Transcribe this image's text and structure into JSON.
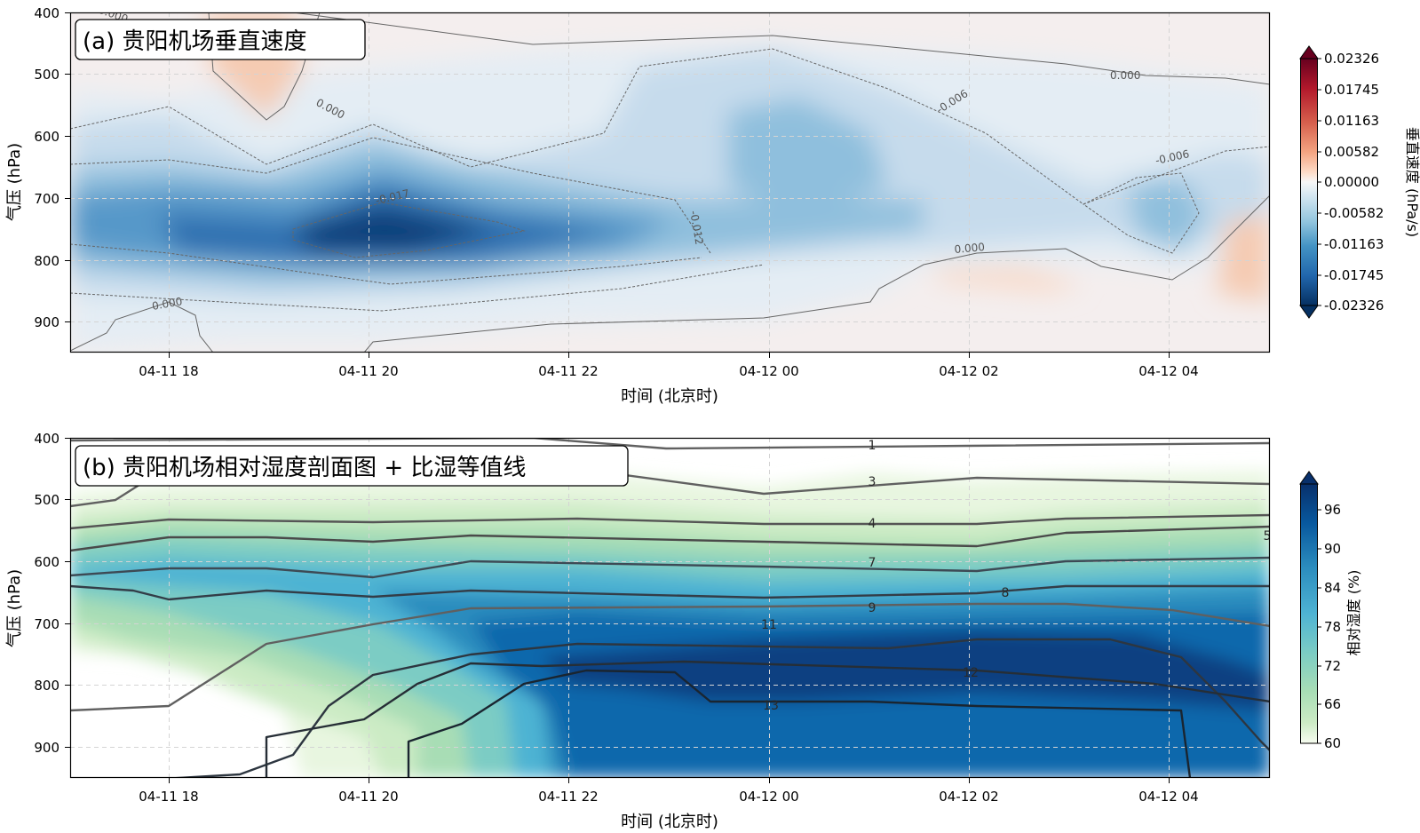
{
  "chart_data": [
    {
      "type": "heatmap",
      "title": "(a) 贵阳机场垂直速度",
      "xlabel": "时间 (北京时)",
      "ylabel": "气压 (hPa)",
      "x_ticks": [
        "04-11 18",
        "04-11 20",
        "04-11 22",
        "04-12 00",
        "04-12 02",
        "04-12 04"
      ],
      "y_ticks": [
        400,
        500,
        600,
        700,
        800,
        900
      ],
      "ylim": [
        950,
        400
      ],
      "grid": true,
      "colormap": "RdBu_r",
      "colorbar_label": "垂直速度 (hPa/s)",
      "colorbar_ticks": [
        "0.02326",
        "0.01745",
        "0.01163",
        "0.00582",
        "0.00000",
        "-0.00582",
        "-0.01163",
        "-0.01745",
        "-0.02326"
      ],
      "contour_labels": [
        "0.000",
        "0.000",
        "0.000",
        "0.000",
        "0.000",
        "-0.006",
        "-0.006",
        "-0.012",
        "-0.017"
      ]
    },
    {
      "type": "heatmap",
      "title": "(b) 贵阳机场相对湿度剖面图 + 比湿等值线",
      "xlabel": "时间 (北京时)",
      "ylabel": "气压 (hPa)",
      "x_ticks": [
        "04-11 18",
        "04-11 20",
        "04-11 22",
        "04-12 00",
        "04-12 02",
        "04-12 04"
      ],
      "y_ticks": [
        400,
        500,
        600,
        700,
        800,
        900
      ],
      "ylim": [
        950,
        400
      ],
      "grid": true,
      "colormap": "GnBu",
      "colorbar_label": "相对湿度 (%)",
      "colorbar_ticks": [
        "96",
        "90",
        "84",
        "78",
        "72",
        "66",
        "60"
      ],
      "contour_labels": [
        "1",
        "3",
        "4",
        "5",
        "7",
        "8",
        "9",
        "11",
        "12",
        "13"
      ]
    }
  ]
}
